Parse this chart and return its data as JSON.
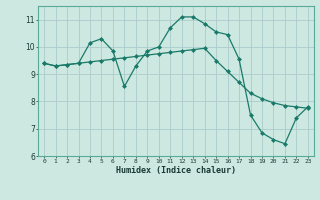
{
  "xlabel": "Humidex (Indice chaleur)",
  "ylabel": "",
  "bg_color": "#cce8e0",
  "grid_color": "#aacccc",
  "line_color": "#1a7a6a",
  "xlim": [
    -0.5,
    23.5
  ],
  "ylim": [
    6,
    11.5
  ],
  "xticks": [
    0,
    1,
    2,
    3,
    4,
    5,
    6,
    7,
    8,
    9,
    10,
    11,
    12,
    13,
    14,
    15,
    16,
    17,
    18,
    19,
    20,
    21,
    22,
    23
  ],
  "yticks": [
    6,
    7,
    8,
    9,
    10,
    11
  ],
  "line1_x": [
    0,
    1,
    2,
    3,
    4,
    5,
    6,
    7,
    8,
    9,
    10,
    11,
    12,
    13,
    14,
    15,
    16,
    17,
    18,
    19,
    20,
    21,
    22,
    23
  ],
  "line1_y": [
    9.4,
    9.3,
    9.35,
    9.4,
    10.15,
    10.3,
    9.85,
    8.55,
    9.3,
    9.85,
    10.0,
    10.7,
    11.1,
    11.1,
    10.85,
    10.55,
    10.45,
    9.55,
    7.5,
    6.85,
    6.6,
    6.45,
    7.4,
    7.8
  ],
  "line2_x": [
    0,
    1,
    2,
    3,
    4,
    5,
    6,
    7,
    8,
    9,
    10,
    11,
    12,
    13,
    14,
    15,
    16,
    17,
    18,
    19,
    20,
    21,
    22,
    23
  ],
  "line2_y": [
    9.4,
    9.3,
    9.35,
    9.4,
    9.45,
    9.5,
    9.55,
    9.6,
    9.65,
    9.7,
    9.75,
    9.8,
    9.85,
    9.9,
    9.95,
    9.5,
    9.1,
    8.7,
    8.3,
    8.1,
    7.95,
    7.85,
    7.8,
    7.75
  ]
}
